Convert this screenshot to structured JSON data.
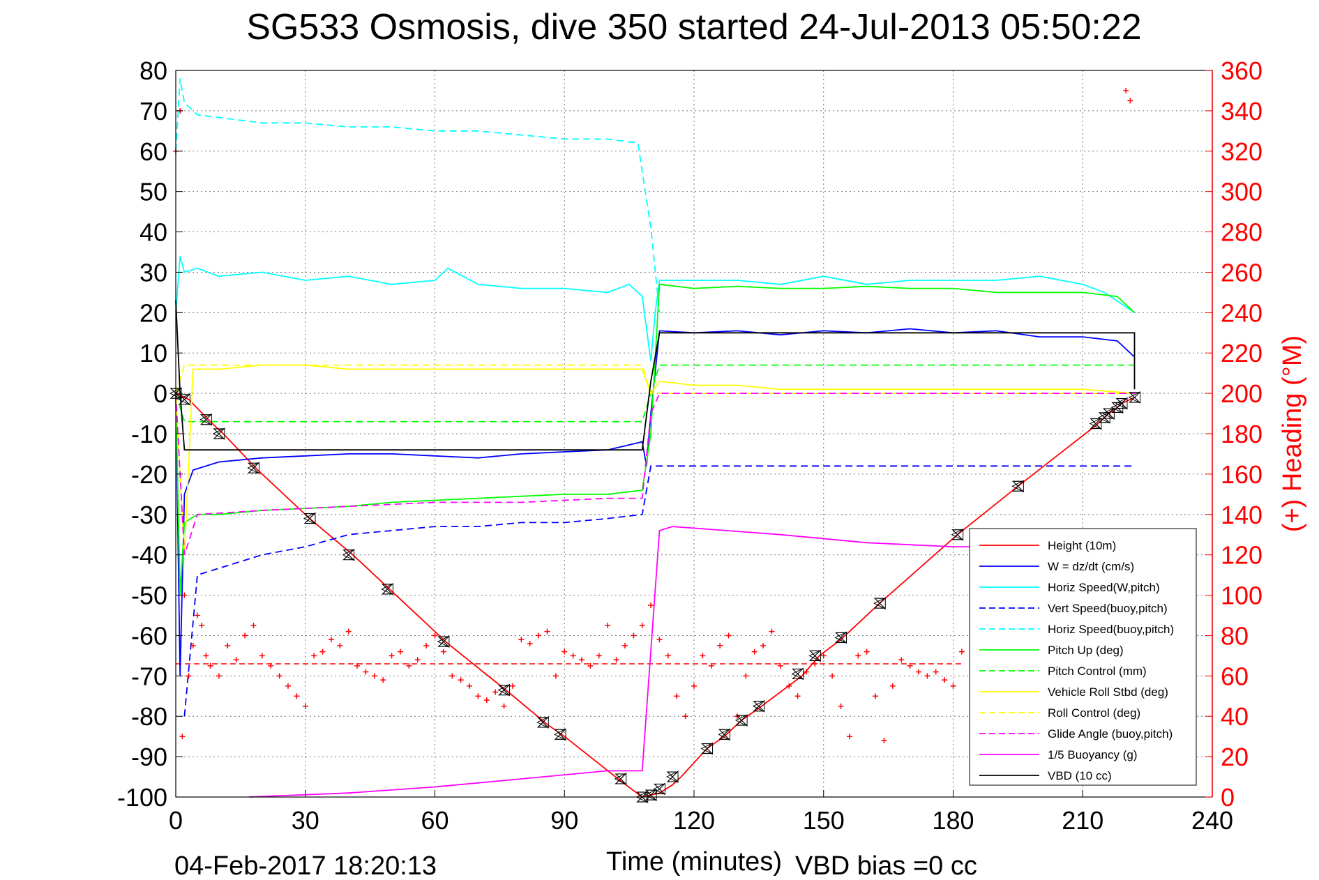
{
  "chart_data": {
    "type": "line",
    "title": "SG533 Osmosis, dive 350 started 24-Jul-2013 05:50:22",
    "xlabel": "Time (minutes)",
    "ylabel_right": "(+) Heading (°M)",
    "footer_left": "04-Feb-2017 18:20:13",
    "footer_right": "VBD bias =0 cc",
    "xlim": [
      0,
      240
    ],
    "ylim_left": [
      -100,
      80
    ],
    "ylim_right": [
      0,
      360
    ],
    "x_ticks": [
      "0",
      "30",
      "60",
      "90",
      "120",
      "150",
      "180",
      "210",
      "240"
    ],
    "y_ticks_left": [
      "80",
      "70",
      "60",
      "50",
      "40",
      "30",
      "20",
      "10",
      "0",
      "-10",
      "-20",
      "-30",
      "-40",
      "-50",
      "-60",
      "-70",
      "-80",
      "-90",
      "-100"
    ],
    "y_ticks_right": [
      "360",
      "340",
      "320",
      "300",
      "280",
      "260",
      "240",
      "220",
      "200",
      "180",
      "160",
      "140",
      "120",
      "100",
      "80",
      "60",
      "40",
      "20",
      "0"
    ],
    "grid": true,
    "legend_position": "bottom-right",
    "colors": {
      "height": "#ff0000",
      "w": "#0000ff",
      "hspeed": "#00ffff",
      "pitch": "#00ff00",
      "roll": "#ffff00",
      "glide": "#ff00ff",
      "buoy": "#ff00ff",
      "vbd": "#000000",
      "heading": "#ff0000"
    },
    "series": [
      {
        "name": "Height (10m)",
        "key": "height",
        "style": "solid",
        "color": "#ff0000",
        "x": [
          0,
          3,
          8,
          11,
          19,
          31,
          41,
          50,
          63,
          77,
          86,
          90,
          103,
          108,
          110,
          112,
          115,
          117,
          123,
          127,
          131,
          135,
          145,
          149,
          154,
          163,
          181,
          195,
          213,
          215,
          216,
          218,
          219,
          222
        ],
        "y": [
          0,
          -1.5,
          -7,
          -10,
          -19,
          -31,
          -40,
          -49,
          -62,
          -74,
          -82,
          -85,
          -96,
          -100,
          -99.5,
          -99,
          -97,
          -95,
          -88,
          -85,
          -81,
          -78,
          -70,
          -65,
          -61,
          -52,
          -35,
          -23,
          -8,
          -6,
          -5,
          -3.5,
          -2.5,
          -1
        ]
      },
      {
        "name": "W = dz/dt (cm/s)",
        "key": "w",
        "style": "solid",
        "color": "#0000ff",
        "x": [
          0,
          1,
          2,
          4,
          10,
          20,
          30,
          40,
          50,
          60,
          70,
          80,
          90,
          100,
          108,
          109,
          110,
          112,
          120,
          130,
          140,
          150,
          160,
          170,
          180,
          190,
          200,
          210,
          218,
          222
        ],
        "y": [
          0,
          -70,
          -25,
          -19,
          -17,
          -16,
          -15.5,
          -15,
          -15,
          -15.5,
          -16,
          -15,
          -14.5,
          -14,
          -12,
          -18,
          -5,
          15.5,
          15,
          15.5,
          14.5,
          15.5,
          15,
          16,
          15,
          15.5,
          14,
          14,
          13,
          9
        ]
      },
      {
        "name": "Horiz Speed(W,pitch)",
        "key": "hspeed",
        "style": "solid",
        "color": "#00ffff",
        "x": [
          0,
          1,
          2,
          5,
          10,
          20,
          30,
          40,
          50,
          60,
          63,
          70,
          80,
          90,
          100,
          105,
          108,
          110,
          111,
          112,
          120,
          130,
          140,
          150,
          160,
          170,
          180,
          190,
          200,
          210,
          215,
          222
        ],
        "y": [
          20,
          34,
          30,
          31,
          29,
          30,
          28,
          29,
          27,
          28,
          31,
          27,
          26,
          26,
          25,
          27,
          24,
          8,
          20,
          28,
          28,
          28,
          27,
          29,
          27,
          28,
          28,
          28,
          29,
          27,
          25,
          20
        ]
      },
      {
        "name": "Vert Speed(buoy,pitch)",
        "key": "vspeed_buoy",
        "style": "dashed",
        "color": "#0000ff",
        "x": [
          2,
          5,
          20,
          30,
          40,
          50,
          60,
          70,
          80,
          90,
          100,
          108,
          110,
          112,
          222
        ],
        "y": [
          -80,
          -45,
          -40,
          -38,
          -35,
          -34,
          -33,
          -33,
          -32,
          -32,
          -31,
          -30,
          -18,
          -18,
          -18
        ]
      },
      {
        "name": "Horiz Speed(buoy,pitch)",
        "key": "hspeed_buoy",
        "style": "dashed",
        "color": "#00ffff",
        "x": [
          0,
          1,
          2,
          5,
          20,
          30,
          40,
          50,
          60,
          70,
          80,
          90,
          100,
          107,
          108,
          110,
          112
        ],
        "y": [
          60,
          78,
          72,
          69,
          67,
          67,
          66,
          66,
          65,
          65,
          64,
          63,
          63,
          62,
          55,
          41,
          20
        ]
      },
      {
        "name": "Pitch Up (deg)",
        "key": "pitch",
        "style": "solid",
        "color": "#00ff00",
        "x": [
          0,
          1,
          2,
          5,
          10,
          20,
          30,
          40,
          50,
          60,
          70,
          80,
          90,
          100,
          108,
          110,
          112,
          120,
          130,
          140,
          150,
          160,
          170,
          180,
          190,
          200,
          210,
          218,
          222
        ],
        "y": [
          0,
          -50,
          -32,
          -30,
          -30,
          -29,
          -28.5,
          -28,
          -27,
          -26.5,
          -26,
          -25.5,
          -25,
          -25,
          -24,
          -10,
          27,
          26,
          26.5,
          26,
          26,
          26.5,
          26,
          26,
          25,
          25,
          25,
          24,
          20
        ]
      },
      {
        "name": "Pitch Control (mm)",
        "key": "pitch_control",
        "style": "dashed",
        "color": "#00ff00",
        "x": [
          0,
          2,
          108,
          110,
          112,
          222
        ],
        "y": [
          0,
          -7,
          -7,
          0,
          7,
          7
        ]
      },
      {
        "name": "Vehicle Roll Stbd (deg)",
        "key": "roll",
        "style": "solid",
        "color": "#ffff00",
        "x": [
          0,
          2,
          4,
          10,
          20,
          30,
          40,
          50,
          60,
          70,
          80,
          90,
          100,
          108,
          110,
          112,
          120,
          130,
          140,
          150,
          160,
          170,
          180,
          190,
          200,
          210,
          222
        ],
        "y": [
          0,
          -40,
          6,
          6,
          7,
          7,
          6,
          6,
          6,
          6,
          6,
          6,
          6,
          6,
          0,
          3,
          2,
          2,
          1,
          1,
          1,
          1,
          1,
          1,
          1,
          1,
          0
        ]
      },
      {
        "name": "Roll Control (deg)",
        "key": "roll_control",
        "style": "dashed",
        "color": "#ffff00",
        "x": [
          0,
          2,
          108,
          110,
          222
        ],
        "y": [
          0,
          7,
          7,
          0,
          0
        ]
      },
      {
        "name": "Glide Angle (buoy,pitch)",
        "key": "glide",
        "style": "dashed",
        "color": "#ff00ff",
        "x": [
          0,
          2,
          5,
          20,
          40,
          60,
          80,
          100,
          108,
          110,
          112,
          222
        ],
        "y": [
          0,
          -40,
          -30,
          -29,
          -28,
          -27,
          -27,
          -26,
          -26,
          -5,
          0,
          0
        ]
      },
      {
        "name": "1/5 Buoyancy (g)",
        "key": "buoy",
        "style": "solid",
        "color": "#ff00ff",
        "x": [
          17,
          40,
          60,
          80,
          100,
          108,
          112,
          115,
          140,
          160,
          180,
          190
        ],
        "y": [
          -100,
          -99,
          -97.5,
          -95.5,
          -93.5,
          -93.5,
          -34,
          -33,
          -35,
          -37,
          -38,
          -38
        ]
      },
      {
        "name": "VBD (10 cc)",
        "key": "vbd",
        "style": "solid",
        "color": "#000000",
        "x": [
          0,
          1,
          2,
          108,
          110,
          112,
          222,
          222
        ],
        "y": [
          23,
          0,
          -14,
          -14,
          3,
          15,
          15,
          1
        ]
      }
    ],
    "heading": {
      "name": "Heading",
      "marker": "+",
      "axis": "right",
      "color": "#ff0000",
      "target_deg": 66,
      "x": [
        0,
        1,
        1.5,
        2,
        3,
        4,
        5,
        6,
        7,
        8,
        10,
        12,
        14,
        16,
        18,
        20,
        22,
        24,
        26,
        28,
        30,
        32,
        34,
        36,
        38,
        40,
        42,
        44,
        46,
        48,
        50,
        52,
        54,
        56,
        58,
        60,
        62,
        64,
        66,
        68,
        70,
        72,
        74,
        76,
        78,
        80,
        82,
        84,
        86,
        88,
        90,
        92,
        94,
        96,
        98,
        100,
        102,
        104,
        106,
        108,
        110,
        112,
        114,
        116,
        118,
        120,
        122,
        124,
        126,
        128,
        130,
        132,
        134,
        136,
        138,
        140,
        142,
        144,
        146,
        148,
        150,
        152,
        154,
        156,
        158,
        160,
        162,
        164,
        166,
        168,
        170,
        172,
        174,
        176,
        178,
        180,
        182,
        220,
        221
      ],
      "y": [
        320,
        340,
        30,
        100,
        60,
        75,
        90,
        85,
        70,
        65,
        60,
        75,
        68,
        80,
        85,
        70,
        65,
        60,
        55,
        50,
        45,
        70,
        72,
        78,
        75,
        82,
        65,
        62,
        60,
        58,
        70,
        72,
        65,
        68,
        75,
        80,
        72,
        60,
        58,
        55,
        50,
        48,
        52,
        45,
        55,
        78,
        76,
        80,
        82,
        60,
        72,
        70,
        68,
        65,
        70,
        85,
        68,
        75,
        80,
        85,
        95,
        78,
        70,
        50,
        40,
        55,
        70,
        65,
        75,
        80,
        40,
        60,
        72,
        75,
        82,
        65,
        55,
        50,
        62,
        66,
        70,
        60,
        45,
        30,
        70,
        72,
        50,
        28,
        55,
        68,
        65,
        62,
        60,
        62,
        58,
        55,
        72,
        350,
        345
      ]
    },
    "markers": {
      "name": "Height samples",
      "x": [
        0,
        2,
        7,
        10,
        18,
        31,
        40,
        49,
        62,
        76,
        85,
        89,
        103,
        108,
        110,
        112,
        115,
        123,
        127,
        131,
        135,
        144,
        148,
        154,
        163,
        181,
        195,
        213,
        215,
        216,
        218,
        219,
        222
      ],
      "y": [
        0,
        -1.5,
        -6.5,
        -10,
        -18.5,
        -31,
        -40,
        -48.5,
        -61.5,
        -73.5,
        -81.5,
        -84.5,
        -95.5,
        -100,
        -99.5,
        -98,
        -95,
        -88,
        -84.5,
        -81,
        -77.5,
        -69.5,
        -65,
        -60.5,
        -52,
        -35,
        -23,
        -7.5,
        -6,
        -5,
        -3.5,
        -2.5,
        -1
      ]
    }
  }
}
